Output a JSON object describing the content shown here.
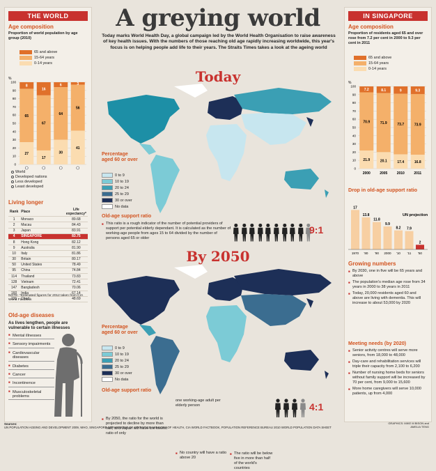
{
  "title": "A greying world",
  "intro": "Today marks World Health Day, a global campaign led by the World Health Organisation to raise awareness of key health issues. With the numbers of those reaching old age rapidly increasing worldwide, this year's focus is on helping people add life to their years. The Straits Times takes a look at the ageing world",
  "colors": {
    "c65": "#e0702a",
    "c1564": "#f4b06a",
    "c014": "#fbdcb0",
    "accent": "#c8322f",
    "map0": "#c7e6ef",
    "map10": "#7ccbd6",
    "map20": "#3b9fb4",
    "map25": "#3b6d90",
    "map30": "#1d2f57",
    "nodata": "#ffffff"
  },
  "world": {
    "tag": "THE WORLD",
    "age_heading": "Age composition",
    "age_sub": "Proportion of world population by age group (2010)",
    "legend": [
      "65 and above",
      "15-64 years",
      "0-14 years"
    ],
    "y_unit": "%",
    "y_ticks": [
      "100",
      "90",
      "80",
      "70",
      "60",
      "50",
      "40",
      "30",
      "20",
      "10",
      "0"
    ],
    "bars": [
      {
        "c65": "8",
        "c1564": "65",
        "c014": "27",
        "v65": 8,
        "v1564": 65,
        "v014": 27
      },
      {
        "c65": "16",
        "c1564": "67",
        "c014": "17",
        "v65": 16,
        "v1564": 67,
        "v014": 17
      },
      {
        "c65": "6",
        "c1564": "64",
        "c014": "30",
        "v65": 6,
        "v1564": 64,
        "v014": 30
      },
      {
        "c65": "3",
        "c1564": "56",
        "c014": "41",
        "v65": 3,
        "v1564": 56,
        "v014": 41
      }
    ],
    "bar_labels": [
      "World",
      "Developed nations",
      "Less developed",
      "Least developed"
    ]
  },
  "living": {
    "heading": "Living longer",
    "col_rank": "Rank",
    "col_place": "Place",
    "col_life": "Life expectancy*",
    "rows": [
      [
        "1",
        "Monaco",
        "89.68"
      ],
      [
        "2",
        "Macau",
        "84.43"
      ],
      [
        "3",
        "Japan",
        "83.91"
      ],
      [
        "4",
        "SINGAPORE",
        "83.75"
      ],
      [
        "8",
        "Hong Kong",
        "82.12"
      ],
      [
        "9",
        "Australia",
        "81.90"
      ],
      [
        "10",
        "Italy",
        "81.86"
      ],
      [
        "30",
        "Britain",
        "80.17"
      ],
      [
        "50",
        "United States",
        "78.49"
      ],
      [
        "95",
        "China",
        "74.84"
      ],
      [
        "114",
        "Thailand",
        "73.83"
      ],
      [
        "128",
        "Vietnam",
        "72.41"
      ],
      [
        "147",
        "Bangladesh",
        "70.06"
      ],
      [
        "160",
        "India",
        "67.14"
      ],
      [
        "221",
        "Chad",
        "48.69"
      ]
    ],
    "note": "NOTE: *Estimated figures for 2012 taken from CIA World Factbook"
  },
  "diseases": {
    "heading": "Old-age diseases",
    "sub": "As lives lengthen, people are vulnerable to certain illnesses",
    "items": [
      "Mental illnesses",
      "Sensory impairments",
      "Cardiovascular diseases",
      "Diabetes",
      "Cancer",
      "Incontinence",
      "Musculoskeletal problems"
    ]
  },
  "today": {
    "title": "Today",
    "pct_heading": "Percentage aged 60 or over",
    "legend": [
      "0 to 9",
      "10 to 19",
      "20 to 24",
      "25 to 29",
      "30 or over",
      "No data"
    ],
    "support_heading": "Old-age support ratio",
    "support_text": "This ratio is a rough indicator of the number of potential providers of support per potential elderly dependant. It is calculated as the number of working-age people from ages 15 to 64 divided by the number of persons aged 65 or older",
    "ratio": "9:1"
  },
  "by2050": {
    "title": "By 2050",
    "pct_heading": "Percentage aged 60 or over",
    "legend": [
      "0 to 9",
      "10 to 19",
      "20 to 24",
      "25 to 29",
      "30 or over",
      "No data"
    ],
    "support_heading": "Old-age support ratio",
    "bullet1": "By 2050, the ratio for the world is projected to decline by more than half, and Japan will have the lowest ratio of only",
    "mid_text1": "one working-age adult per elderly person",
    "mid_text2": "No country will have a ratio above 20",
    "right_text": "The ratio will be below five in more than half of the world's countries",
    "ratio": "4:1"
  },
  "singapore": {
    "tag": "IN SINGAPORE",
    "age_heading": "Age composition",
    "age_sub": "Proportion of residents aged 65 and over rose from 7.2 per cent in 2000 to 9.3 per cent in 2011",
    "legend": [
      "65 and above",
      "15-64 years",
      "0-14 years"
    ],
    "y_unit": "%",
    "y_ticks": [
      "100",
      "90",
      "80",
      "70",
      "60",
      "50",
      "40",
      "30",
      "20",
      "10",
      "0"
    ],
    "bars": [
      {
        "c65": "7.2",
        "c1564": "70.9",
        "c014": "21.9",
        "v65": 7.2,
        "v1564": 70.9,
        "v014": 21.9
      },
      {
        "c65": "8.1",
        "c1564": "71.9",
        "c014": "20.1",
        "v65": 8.1,
        "v1564": 71.9,
        "v014": 20.1
      },
      {
        "c65": "9",
        "c1564": "73.7",
        "c014": "17.4",
        "v65": 9,
        "v1564": 73.7,
        "v014": 17.4
      },
      {
        "c65": "9.3",
        "c1564": "73.9",
        "c014": "16.8",
        "v65": 9.3,
        "v1564": 73.9,
        "v014": 16.8
      }
    ],
    "bar_labels": [
      "2000",
      "2005",
      "2010",
      "2011"
    ],
    "drop_heading": "Drop in old-age support ratio",
    "projection_label": "UN projection",
    "drop_bars": [
      {
        "label": "1970",
        "value": 17,
        "text": "17"
      },
      {
        "label": "'80",
        "value": 13.8,
        "text": "13.8"
      },
      {
        "label": "'90",
        "value": 11.8,
        "text": "11.8"
      },
      {
        "label": "2000",
        "value": 9.9,
        "text": "9.9"
      },
      {
        "label": "'10",
        "value": 8.2,
        "text": "8.2"
      },
      {
        "label": "'11",
        "value": 7.9,
        "text": "7.9"
      },
      {
        "label": "'50",
        "value": 2,
        "text": "2"
      }
    ],
    "growing_heading": "Growing numbers",
    "growing": [
      "By 2030, one in five will be 65 years and above",
      "The population's median age rose from 34 years in 2000 to 38 years in 2011",
      "Today, 20,000 residents aged 60 and above are living with dementia. This will increase to about 53,000 by 2020"
    ],
    "needs_heading": "Meeting needs (by 2020)",
    "needs": [
      "Senior activity centres will serve more seniors, from 18,000 to 48,000",
      "Day-care and rehabilitation services will triple their capacity from 2,100 to 6,200",
      "Number of nursing home beds for seniors without family support will be increased by 70 per cent, from 9,000 to 15,600",
      "More home caregivers will serve 10,000 patients, up from 4,000"
    ]
  },
  "footer": {
    "sources": "Sources:",
    "source_text": "UN POPULATION AGEING AND DEVELOPMENT 2009, WHO, SINGAPORE DEPARTMENT OF STATISTICS, MINISTRY OF HEALTH, CIA WORLD FACTBOOK, POPULATION REFERENCE BUREAU 2010 WORLD POPULATION DATA SHEET",
    "graphics": "GRAPHICS: MIKE M BISON and AMELIA TENG"
  }
}
